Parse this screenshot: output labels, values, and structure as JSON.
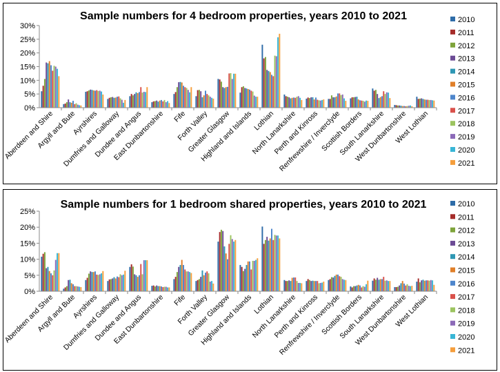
{
  "colors": [
    "#2E6CA8",
    "#A52C2A",
    "#7EA43B",
    "#6C4B95",
    "#2E97B4",
    "#E07F29",
    "#4E86CC",
    "#D9514B",
    "#9CC460",
    "#8C6AB8",
    "#39B6D6",
    "#F59E3C"
  ],
  "chart_data": [
    {
      "type": "bar",
      "title": "Sample numbers for 4 bedroom properties, years 2010 to 2021",
      "xlabel": "",
      "ylabel": "",
      "ylim": [
        0,
        30
      ],
      "yticks": [
        "0%",
        "5%",
        "10%",
        "15%",
        "20%",
        "25%",
        "30%"
      ],
      "grid": false,
      "legend": "right",
      "categories": [
        "Aberdeen and Shire",
        "Argyll and Bute",
        "Ayrshires",
        "Dumfries and Galloway",
        "Dundee and Angus",
        "East Dunbartonshire",
        "Fife",
        "Forth Valley",
        "Greater Glasgow",
        "Highland and Islands",
        "Lothian",
        "North Lanarkshire",
        "Perth and Kinross",
        "Renfrewshire / Inverclyde",
        "Scottish Borders",
        "South Lanarkshire",
        "West Dunbartonshire",
        "West Lothian"
      ],
      "series": [
        {
          "name": "2010",
          "values": [
            6,
            1.3,
            5.8,
            3.2,
            4.2,
            2,
            5,
            4.2,
            10.5,
            5.5,
            23,
            4.8,
            3.3,
            3.2,
            3.4,
            7,
            1,
            4
          ]
        },
        {
          "name": "2011",
          "values": [
            8,
            1.5,
            6,
            3.6,
            5,
            2.3,
            5.7,
            6.4,
            10.3,
            7.5,
            18,
            4.2,
            3.7,
            3.2,
            3.8,
            6.2,
            0.9,
            3.2
          ]
        },
        {
          "name": "2012",
          "values": [
            10.5,
            2,
            6.3,
            3.8,
            4.5,
            2.4,
            7.5,
            6.5,
            9.5,
            7.8,
            18.5,
            4,
            3.5,
            4.5,
            3.8,
            6.5,
            0.8,
            3.3
          ]
        },
        {
          "name": "2013",
          "values": [
            16.5,
            3,
            6.6,
            3.9,
            5,
            2.6,
            9.3,
            6,
            7.5,
            7.2,
            13.8,
            3.8,
            3.8,
            3.8,
            3.9,
            5,
            0.8,
            3.4
          ]
        },
        {
          "name": "2014",
          "values": [
            16.2,
            2,
            6.5,
            3.6,
            5.6,
            2.2,
            9.4,
            3.8,
            7.2,
            7,
            13.4,
            3.4,
            3.8,
            3.8,
            4,
            3.5,
            0.7,
            3.2
          ]
        },
        {
          "name": "2015",
          "values": [
            17,
            1.8,
            6.3,
            3.7,
            5.3,
            2.6,
            9.2,
            4.5,
            7.5,
            6.8,
            13,
            3.6,
            3,
            4.1,
            3,
            3.9,
            0.6,
            3
          ]
        },
        {
          "name": "2016",
          "values": [
            15.5,
            2.5,
            6.2,
            4,
            5.7,
            2.8,
            8,
            6.2,
            7.6,
            6.6,
            12,
            3.7,
            3.7,
            5.2,
            2.7,
            4.2,
            0.6,
            2.9
          ]
        },
        {
          "name": "2017",
          "values": [
            13.5,
            1.3,
            6.4,
            4.1,
            7.5,
            2.3,
            7.5,
            5,
            12.5,
            6.2,
            11.5,
            3.6,
            2.9,
            5.2,
            2.6,
            6,
            0.5,
            2.9
          ]
        },
        {
          "name": "2018",
          "values": [
            15.3,
            1.6,
            6.1,
            3.4,
            5.5,
            2.8,
            7.2,
            4.5,
            12.6,
            5.9,
            19,
            4,
            2.7,
            4.6,
            2.5,
            5,
            0.6,
            2.8
          ]
        },
        {
          "name": "2019",
          "values": [
            15,
            1.1,
            6.2,
            2.9,
            5.8,
            2,
            6.5,
            4,
            10.5,
            4.4,
            18.8,
            4.2,
            2.6,
            4.8,
            2.2,
            5.6,
            0.7,
            2.8
          ]
        },
        {
          "name": "2020",
          "values": [
            14.2,
            0.9,
            5.9,
            1.8,
            5.7,
            2.4,
            5.6,
            3.6,
            12.4,
            4,
            25.7,
            3.6,
            2.8,
            3.4,
            2.6,
            5.5,
            0.8,
            2.7
          ]
        },
        {
          "name": "2021",
          "values": [
            11.5,
            0.8,
            4.8,
            2.8,
            7.5,
            1.7,
            7.5,
            3.3,
            12.4,
            4,
            27,
            2.8,
            3,
            2.5,
            2.5,
            3.5,
            0.5,
            2.6
          ]
        }
      ]
    },
    {
      "type": "bar",
      "title": "Sample numbers for 1 bedroom shared properties, years 2010 to 2021",
      "xlabel": "",
      "ylabel": "",
      "ylim": [
        0,
        25
      ],
      "yticks": [
        "0%",
        "5%",
        "10%",
        "15%",
        "20%",
        "25%"
      ],
      "grid": false,
      "legend": "right",
      "categories": [
        "Aberdeen and Shire",
        "Argyll and Bute",
        "Ayrshires",
        "Dumfries and Galloway",
        "Dundee and Angus",
        "East Dunbartonshire",
        "Fife",
        "Forth Valley",
        "Greater Glasgow",
        "Highland and Islands",
        "Lothian",
        "North Lanarkshire",
        "Perth and Kinross",
        "Renfrewshire / Inverclyde",
        "Scottish Borders",
        "South Lanarkshire",
        "West Dunbartonshire",
        "West Lothian"
      ],
      "series": [
        {
          "name": "2010",
          "values": [
            10.8,
            0.8,
            3.5,
            3.2,
            7.6,
            1.7,
            3.8,
            3.2,
            15.5,
            8.2,
            20.2,
            3.5,
            3.2,
            3.5,
            1.5,
            3.3,
            1.3,
            3
          ]
        },
        {
          "name": "2011",
          "values": [
            11.7,
            1.2,
            4.2,
            3.7,
            8.4,
            1.8,
            4.5,
            3.5,
            18.5,
            7.6,
            14.8,
            3.2,
            3.8,
            3.8,
            1.2,
            4,
            1.3,
            4
          ]
        },
        {
          "name": "2012",
          "values": [
            12.2,
            1.6,
            5.5,
            3.8,
            7.7,
            1.5,
            6,
            3.8,
            19.2,
            6.3,
            16,
            3.2,
            3.5,
            4.4,
            1.6,
            3.6,
            1.4,
            2.8
          ]
        },
        {
          "name": "2013",
          "values": [
            7.2,
            3.5,
            6.2,
            4,
            5.3,
            1.8,
            7.6,
            4.5,
            18.8,
            7,
            17,
            3.4,
            3.2,
            4.3,
            1.6,
            4.2,
            1.8,
            3.4
          ]
        },
        {
          "name": "2014",
          "values": [
            7.6,
            3.6,
            6,
            4.4,
            5,
            1.6,
            8.2,
            6.5,
            14,
            8.2,
            15.8,
            3.2,
            3.3,
            4.8,
            1.8,
            3.6,
            2.5,
            3.6
          ]
        },
        {
          "name": "2015",
          "values": [
            6.3,
            2.5,
            6,
            4,
            4.5,
            1.6,
            9.8,
            5,
            11.8,
            9.3,
            16.5,
            4.2,
            3.2,
            5.2,
            2,
            3.8,
            3.2,
            3.3
          ]
        },
        {
          "name": "2016",
          "values": [
            5.6,
            2.2,
            6.2,
            4.6,
            5,
            1.5,
            8.2,
            5.8,
            10,
            9.3,
            19.5,
            4.3,
            3.2,
            5.2,
            1.8,
            3.8,
            2.4,
            3.4
          ]
        },
        {
          "name": "2017",
          "values": [
            5,
            1.6,
            5.2,
            4.4,
            8.5,
            1.3,
            6.8,
            6.2,
            14.8,
            6.8,
            16,
            4.3,
            3.2,
            4.7,
            1.2,
            4.5,
            1.8,
            3.4
          ]
        },
        {
          "name": "2018",
          "values": [
            6.5,
            1.6,
            5.1,
            5.3,
            5.3,
            1.4,
            6.2,
            5.6,
            17.5,
            9.5,
            17.6,
            3.2,
            2.5,
            4.5,
            1.6,
            3.3,
            2.2,
            3.3
          ]
        },
        {
          "name": "2019",
          "values": [
            9.8,
            1.5,
            5.3,
            5,
            9.7,
            1.4,
            6.2,
            3,
            16.3,
            9.5,
            17.4,
            2.6,
            2.6,
            3.8,
            1.4,
            3.4,
            1.7,
            3.5
          ]
        },
        {
          "name": "2020",
          "values": [
            11.9,
            1.4,
            5.6,
            5.2,
            9.7,
            1.2,
            6,
            3.2,
            15.5,
            9.8,
            17.4,
            2.6,
            2.7,
            3.6,
            2.2,
            3.2,
            1.6,
            3.4
          ]
        },
        {
          "name": "2021",
          "values": [
            11.9,
            1.3,
            6.3,
            6.4,
            9.7,
            1.2,
            5.7,
            2.4,
            16,
            10.3,
            16.5,
            2.5,
            3,
            3.5,
            3.3,
            3.2,
            1.7,
            2
          ]
        }
      ]
    }
  ]
}
